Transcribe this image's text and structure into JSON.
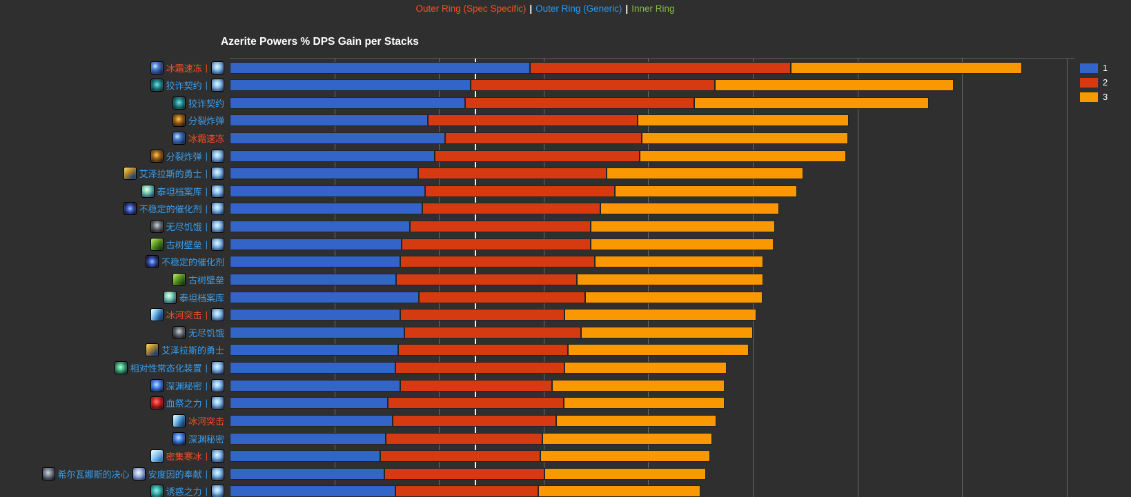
{
  "nav": {
    "separator": "|",
    "links": [
      {
        "key": "outer-ring-spec-specific",
        "label": "Outer Ring (Spec Specific)",
        "color": "#fb4f26"
      },
      {
        "key": "outer-ring-generic",
        "label": "Outer Ring (Generic)",
        "color": "#2b9af0"
      },
      {
        "key": "inner-ring",
        "label": "Inner Ring",
        "color": "#85bb47"
      }
    ]
  },
  "chart": {
    "title": "Azerite Powers % DPS Gain per Stacks",
    "legend": [
      {
        "label": "1",
        "color": "#3364c8"
      },
      {
        "label": "2",
        "color": "#d53a10"
      },
      {
        "label": "3",
        "color": "#f99800"
      }
    ]
  },
  "colors": {
    "background": "#2f2f2f",
    "stack1": "#3364c8",
    "stack2": "#d53a10",
    "stack3": "#f99800",
    "label_spec": "#fb4f26",
    "label_generic": "#3aa0f0",
    "gridline": "#6b6b6b",
    "plotline": "#f5f5f5",
    "title": "#ffffff"
  },
  "chart_data": {
    "type": "bar",
    "orientation": "horizontal",
    "stacked": true,
    "title": "Azerite Powers % DPS Gain per Stacks",
    "xlabel": "",
    "ylabel": "",
    "legend_position": "top-right",
    "series_names": [
      "1",
      "2",
      "3"
    ],
    "values_are_cumulative": true,
    "axis_note": "x-axis tick labels are not visible in the screenshot; values are estimated in gridline units (1 unit = one gridline spacing), grid on, axis range 0 to ~8.1, white reference plot-line at ~2.35 units",
    "x_range": [
      0,
      8.1
    ],
    "gridline_units": [
      1,
      2,
      3,
      4,
      5,
      6,
      7,
      8
    ],
    "plotline_value": 2.345,
    "categories": [
      "冰霜速冻 |",
      "狡诈契约 |",
      "狡诈契约",
      "分裂炸弹",
      "冰霜速冻",
      "分裂炸弹 |",
      "艾泽拉斯的勇士 |",
      "泰坦档案库 |",
      "不稳定的催化剂 |",
      "无尽饥饿 |",
      "古树壁垒 |",
      "不稳定的催化剂",
      "古树壁垒",
      "泰坦档案库",
      "冰河突击 |",
      "无尽饥饿",
      "艾泽拉斯的勇士",
      "相对性常态化装置 |",
      "深渊秘密 |",
      "血祭之力 |",
      "冰河突击",
      "深渊秘密",
      "密集寒冰 |",
      "希尔瓦娜斯的决心 安度因的奉献 |",
      "诱惑之力 |"
    ],
    "stacks_cumulative": [
      [
        2.87,
        5.36,
        7.57
      ],
      [
        2.3,
        4.64,
        6.92
      ],
      [
        2.25,
        4.44,
        6.68
      ],
      [
        1.89,
        3.9,
        5.92
      ],
      [
        2.06,
        3.94,
        5.91
      ],
      [
        1.96,
        3.92,
        5.89
      ],
      [
        1.8,
        3.6,
        5.48
      ],
      [
        1.87,
        3.68,
        5.42
      ],
      [
        1.84,
        3.54,
        5.25
      ],
      [
        1.72,
        3.45,
        5.21
      ],
      [
        1.64,
        3.45,
        5.2
      ],
      [
        1.63,
        3.49,
        5.1
      ],
      [
        1.59,
        3.32,
        5.1
      ],
      [
        1.81,
        3.4,
        5.09
      ],
      [
        1.63,
        3.2,
        5.03
      ],
      [
        1.67,
        3.36,
        5.0
      ],
      [
        1.61,
        3.23,
        4.96
      ],
      [
        1.58,
        3.2,
        4.75
      ],
      [
        1.63,
        3.08,
        4.73
      ],
      [
        1.51,
        3.19,
        4.73
      ],
      [
        1.56,
        3.12,
        4.65
      ],
      [
        1.49,
        2.99,
        4.61
      ],
      [
        1.44,
        2.97,
        4.59
      ],
      [
        1.48,
        3.01,
        4.55
      ],
      [
        1.58,
        2.95,
        4.5
      ]
    ]
  },
  "rows": [
    {
      "icon": "flash-freeze",
      "label": "冰霜速冻",
      "color_type": "spec",
      "suffix": true
    },
    {
      "icon": "dubious-pact",
      "label": "狡诈契约",
      "color_type": "generic",
      "suffix": true
    },
    {
      "icon": "dubious-pact",
      "label": "狡诈契约",
      "color_type": "generic",
      "suffix": false
    },
    {
      "icon": "splitting-bomb",
      "label": "分裂炸弹",
      "color_type": "generic",
      "suffix": false
    },
    {
      "icon": "flash-freeze",
      "label": "冰霜速冻",
      "color_type": "spec",
      "suffix": false
    },
    {
      "icon": "splitting-bomb",
      "label": "分裂炸弹",
      "color_type": "generic",
      "suffix": true
    },
    {
      "icon": "champion-of-azeroth",
      "label": "艾泽拉斯的勇士",
      "color_type": "generic",
      "suffix": true
    },
    {
      "icon": "archive-of-the-titans",
      "label": "泰坦档案库",
      "color_type": "generic",
      "suffix": true
    },
    {
      "icon": "unstable-catalyst",
      "label": "不稳定的催化剂",
      "color_type": "generic",
      "suffix": true
    },
    {
      "icon": "endless-hunger",
      "label": "无尽饥饿",
      "color_type": "generic",
      "suffix": true
    },
    {
      "icon": "ancients-bulwark",
      "label": "古树壁垒",
      "color_type": "generic",
      "suffix": true
    },
    {
      "icon": "unstable-catalyst",
      "label": "不稳定的催化剂",
      "color_type": "generic",
      "suffix": false
    },
    {
      "icon": "ancients-bulwark",
      "label": "古树壁垒",
      "color_type": "generic",
      "suffix": false
    },
    {
      "icon": "archive-of-the-titans",
      "label": "泰坦档案库",
      "color_type": "generic",
      "suffix": false
    },
    {
      "icon": "glacial-assault",
      "label": "冰河突击",
      "color_type": "spec",
      "suffix": true
    },
    {
      "icon": "endless-hunger",
      "label": "无尽饥饿",
      "color_type": "generic",
      "suffix": false
    },
    {
      "icon": "champion-of-azeroth",
      "label": "艾泽拉斯的勇士",
      "color_type": "generic",
      "suffix": false
    },
    {
      "icon": "normalization-device",
      "label": "相对性常态化装置",
      "color_type": "generic",
      "suffix": true
    },
    {
      "icon": "secrets-of-the-deep",
      "label": "深渊秘密",
      "color_type": "generic",
      "suffix": true
    },
    {
      "icon": "blood-rite",
      "label": "血祭之力",
      "color_type": "generic",
      "suffix": true
    },
    {
      "icon": "glacial-assault",
      "label": "冰河突击",
      "color_type": "spec",
      "suffix": false
    },
    {
      "icon": "secrets-of-the-deep",
      "label": "深渊秘密",
      "color_type": "generic",
      "suffix": false
    },
    {
      "icon": "packed-ice",
      "label": "密集寒冰",
      "color_type": "spec",
      "suffix": true
    },
    {
      "icon": "sylvanas-resolve",
      "label": "希尔瓦娜斯的决心",
      "color_type": "generic",
      "suffix": true,
      "icon2": "anduins-dedication",
      "label2": "安度因的奉献"
    },
    {
      "icon": "beguiling",
      "label": "诱惑之力",
      "color_type": "generic",
      "suffix": true
    }
  ]
}
